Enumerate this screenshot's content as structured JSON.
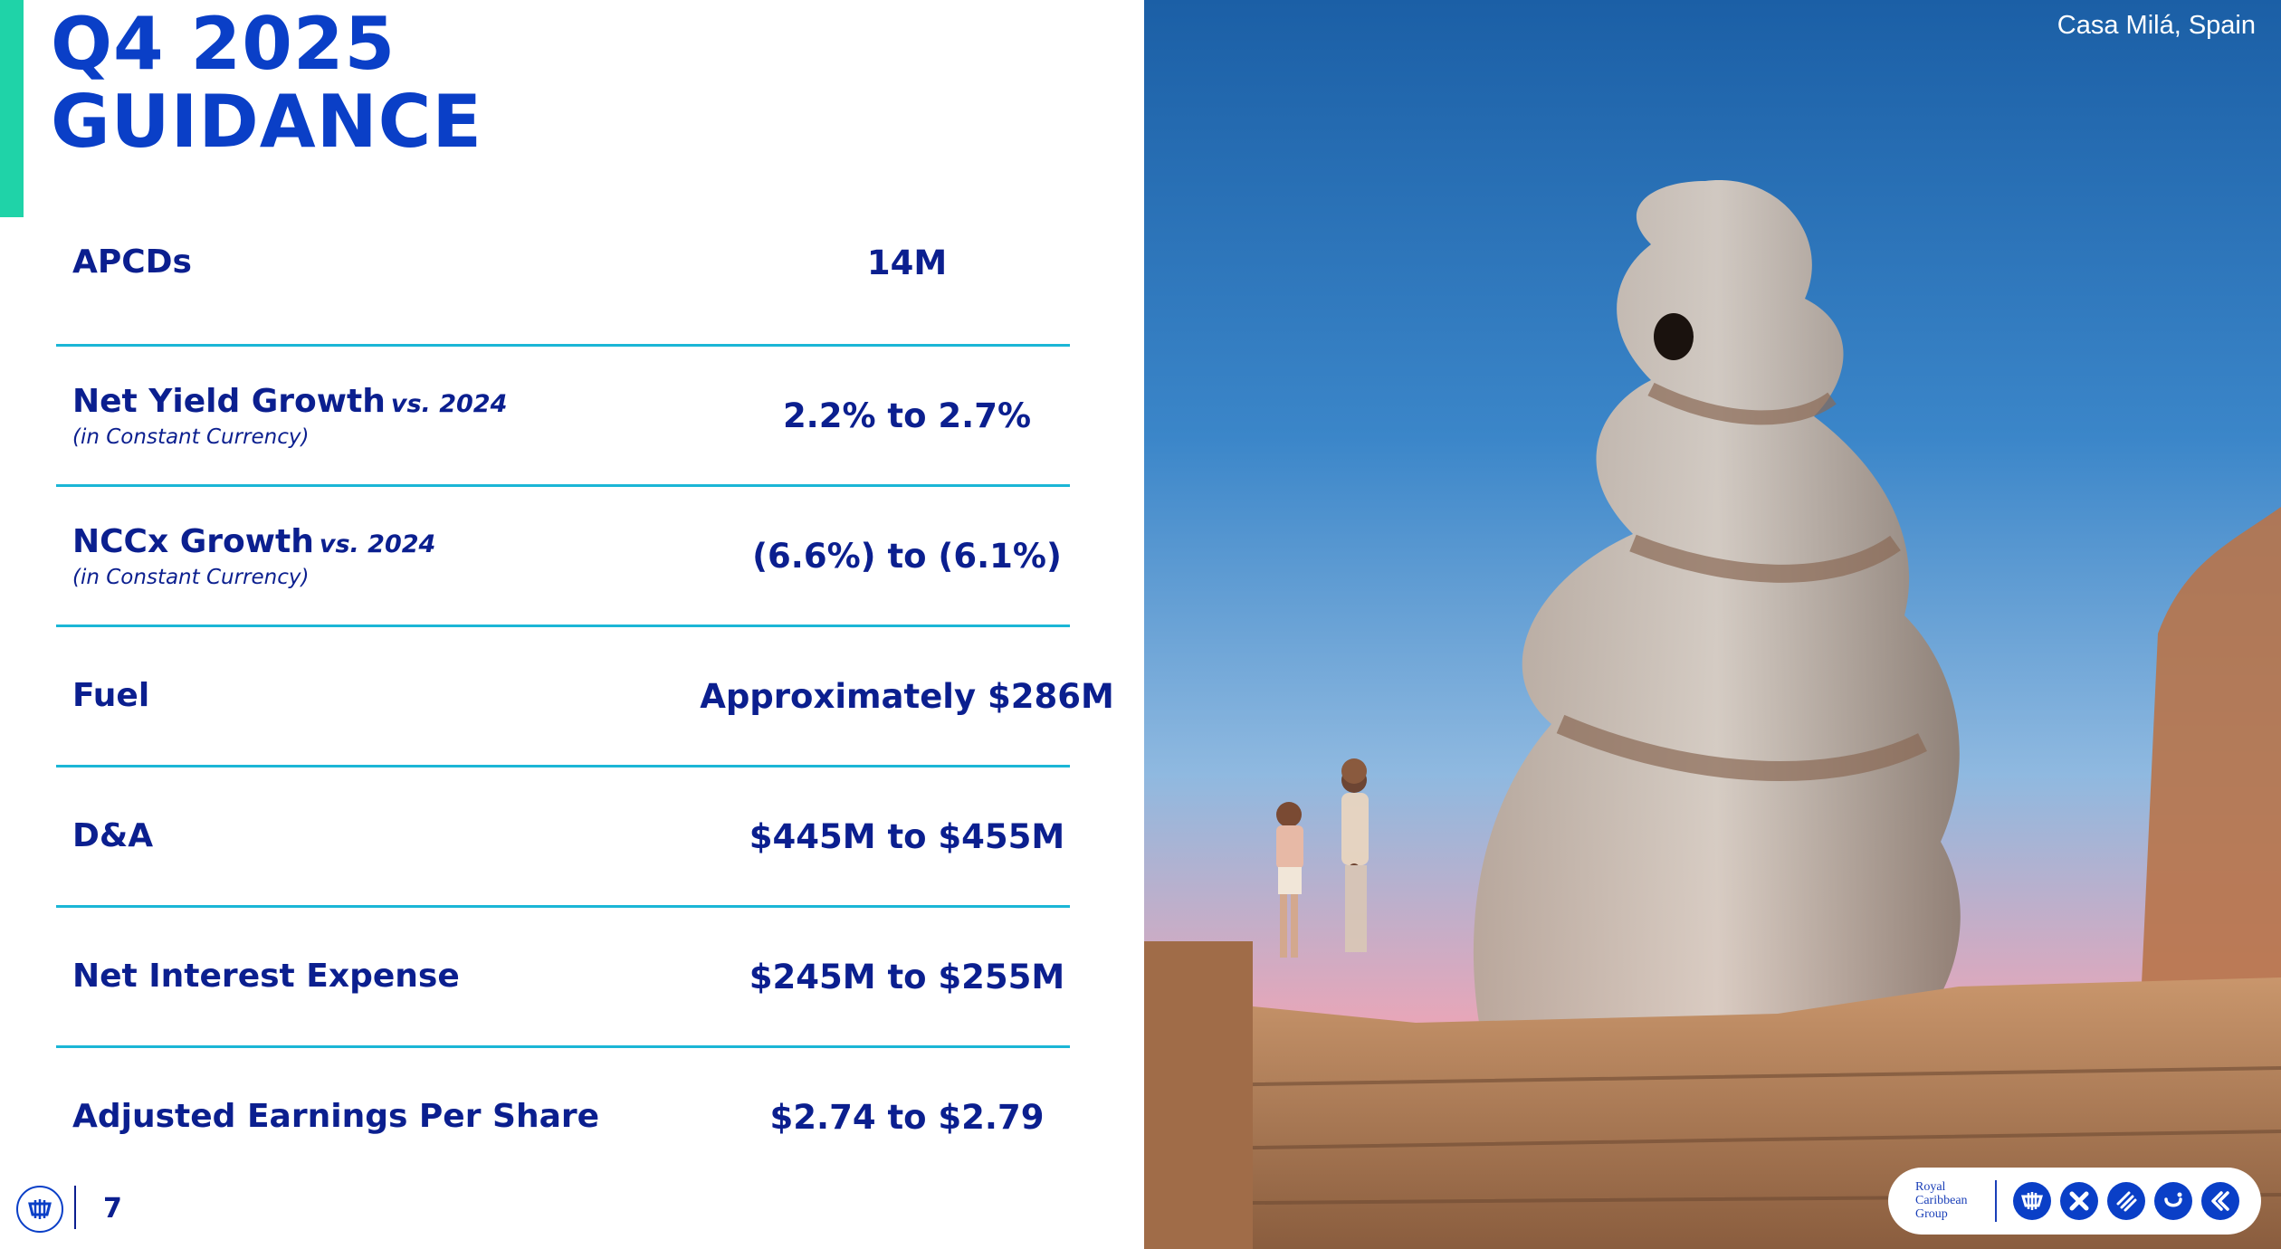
{
  "slide": {
    "title_line1": "Q4 2025",
    "title_line2": "GUIDANCE",
    "page_number": "7"
  },
  "guidance": {
    "rows": [
      {
        "label": "APCDs",
        "qualifier": "",
        "sublabel": "",
        "value": "14M"
      },
      {
        "label": "Net Yield Growth",
        "qualifier": "vs. 2024",
        "sublabel": "(in Constant Currency)",
        "value": "2.2% to 2.7%"
      },
      {
        "label": "NCCx Growth",
        "qualifier": "vs. 2024",
        "sublabel": "(in Constant Currency)",
        "value": "(6.6%) to (6.1%)"
      },
      {
        "label": "Fuel",
        "qualifier": "",
        "sublabel": "",
        "value": "Approximately $286M"
      },
      {
        "label": "D&A",
        "qualifier": "",
        "sublabel": "",
        "value": "$445M to $455M"
      },
      {
        "label": "Net Interest Expense",
        "qualifier": "",
        "sublabel": "",
        "value": "$245M to $255M"
      },
      {
        "label": "Adjusted Earnings Per Share",
        "qualifier": "",
        "sublabel": "",
        "value": "$2.74 to $2.79"
      }
    ]
  },
  "photo": {
    "caption": "Casa Milá, Spain"
  },
  "brand": {
    "name_lines": [
      "Royal",
      "Caribbean",
      "Group"
    ],
    "icons": [
      "royal-caribbean-icon",
      "celebrity-icon",
      "silversea-icon",
      "tui-cruises-icon",
      "hapag-lloyd-icon"
    ]
  },
  "colors": {
    "title_blue": "#0a3fc7",
    "text_navy": "#0b1f8f",
    "divider_cyan": "#1bb6d6",
    "accent_teal": "#1fd3a8"
  }
}
